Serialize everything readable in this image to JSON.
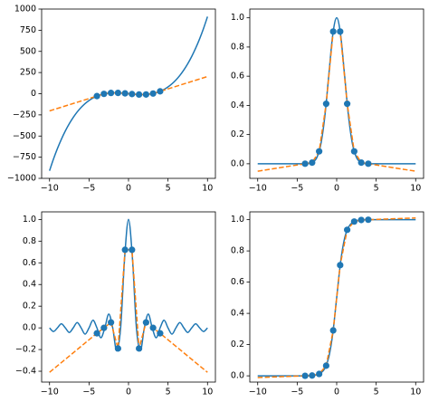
{
  "chart_data": [
    {
      "type": "line",
      "xlim": [
        -11,
        11
      ],
      "ylim": [
        -1000,
        1000
      ],
      "xticks": [
        {
          "value": -10,
          "label": "−10"
        },
        {
          "value": -5,
          "label": "−5"
        },
        0,
        5,
        10
      ],
      "yticks": [
        {
          "value": -1000,
          "label": "−1000"
        },
        {
          "value": -750,
          "label": "−750"
        },
        {
          "value": -500,
          "label": "−500"
        },
        {
          "value": -250,
          "label": "−250"
        },
        0,
        250,
        500,
        750,
        1000
      ],
      "series": [
        {
          "style": "solid",
          "color": "#1f77b4",
          "x": [
            -10,
            -9.5,
            -9,
            -8.5,
            -8,
            -7.5,
            -7,
            -6.5,
            -6,
            -5.5,
            -5,
            -4.5,
            -4,
            -3.5,
            -3,
            -2.5,
            -2,
            -1.5,
            -1,
            -0.5,
            0,
            0.5,
            1,
            1.5,
            2,
            2.5,
            3,
            3.5,
            4,
            4.5,
            5,
            5.5,
            6,
            6.5,
            7,
            7.5,
            8,
            8.5,
            9,
            9.5,
            10
          ],
          "values": [
            -910,
            -771.9,
            -648,
            -537.6,
            -440,
            -354.4,
            -280,
            -216.1,
            -162,
            -116.9,
            -80,
            -50.6,
            -28,
            -11.4,
            0,
            6.9,
            10,
            10.1,
            8,
            4.4,
            0,
            -4.4,
            -8,
            -10.1,
            -10,
            -6.9,
            0,
            11.4,
            28,
            50.6,
            80,
            116.9,
            162,
            216.1,
            280,
            354.4,
            440,
            537.6,
            648,
            771.9,
            910
          ]
        },
        {
          "style": "dashed",
          "color": "#ff7f0e",
          "x": [
            -10,
            -4,
            -3.11,
            -2.22,
            -1.33,
            -0.44,
            0.44,
            1.33,
            2.22,
            3.11,
            4,
            10
          ],
          "values": [
            -203,
            -28,
            -2.12,
            9.03,
            9.63,
            3.91,
            -3.91,
            -9.63,
            -9.03,
            2.12,
            28,
            203
          ]
        },
        {
          "style": "markers",
          "color": "#1f77b4",
          "x": [
            -4,
            -3.11,
            -2.22,
            -1.33,
            -0.44,
            0.44,
            1.33,
            2.22,
            3.11,
            4
          ],
          "values": [
            -28,
            -2.12,
            9.03,
            9.63,
            3.91,
            -3.91,
            -9.63,
            -9.03,
            2.12,
            28
          ]
        }
      ]
    },
    {
      "type": "line",
      "xlim": [
        -11,
        11
      ],
      "ylim": [
        -0.1,
        1.06
      ],
      "xticks": [
        {
          "value": -10,
          "label": "−10"
        },
        {
          "value": -5,
          "label": "−5"
        },
        0,
        5,
        10
      ],
      "yticks": [
        {
          "value": 0,
          "label": "0.0"
        },
        0.2,
        0.4,
        0.6,
        0.8,
        {
          "value": 1,
          "label": "1.0"
        }
      ],
      "series": [
        {
          "style": "solid",
          "color": "#1f77b4",
          "x": [
            -10,
            -9.5,
            -9,
            -8.5,
            -8,
            -7.5,
            -7,
            -6.5,
            -6,
            -5.5,
            -5,
            -4.5,
            -4,
            -3.5,
            -3,
            -2.5,
            -2,
            -1.5,
            -1,
            -0.5,
            0,
            0.5,
            1,
            1.5,
            2,
            2.5,
            3,
            3.5,
            4,
            4.5,
            5,
            5.5,
            6,
            6.5,
            7,
            7.5,
            8,
            8.5,
            9,
            9.5,
            10
          ],
          "values": [
            0,
            0,
            0,
            0,
            0,
            0,
            0,
            0,
            0,
            0,
            0,
            0,
            0.0003,
            0.0022,
            0.0111,
            0.0439,
            0.1353,
            0.3247,
            0.6065,
            0.8825,
            1,
            0.8825,
            0.6065,
            0.3247,
            0.1353,
            0.0439,
            0.0111,
            0.0022,
            0.0003,
            0,
            0,
            0,
            0,
            0,
            0,
            0,
            0,
            0,
            0,
            0,
            0
          ]
        },
        {
          "style": "dashed",
          "color": "#ff7f0e",
          "x": [
            -10,
            -4,
            -3.11,
            -2.22,
            -1.33,
            -0.44,
            0.44,
            1.33,
            2.22,
            3.11,
            4,
            10
          ],
          "values": [
            -0.051,
            0.0003,
            0.0079,
            0.085,
            0.411,
            0.906,
            0.906,
            0.411,
            0.085,
            0.0079,
            0.0003,
            -0.051
          ]
        },
        {
          "style": "markers",
          "color": "#1f77b4",
          "x": [
            -4,
            -3.11,
            -2.22,
            -1.33,
            -0.44,
            0.44,
            1.33,
            2.22,
            3.11,
            4
          ],
          "values": [
            0.0003,
            0.0079,
            0.085,
            0.411,
            0.906,
            0.906,
            0.411,
            0.085,
            0.0079,
            0.0003
          ]
        }
      ]
    },
    {
      "type": "line",
      "xlim": [
        -11,
        11
      ],
      "ylim": [
        -0.5,
        1.07
      ],
      "xticks": [
        {
          "value": -10,
          "label": "−10"
        },
        {
          "value": -5,
          "label": "−5"
        },
        0,
        5,
        10
      ],
      "yticks": [
        {
          "value": -0.4,
          "label": "−0.4"
        },
        {
          "value": -0.2,
          "label": "−0.2"
        },
        {
          "value": 0,
          "label": "0.0"
        },
        0.2,
        0.4,
        0.6,
        0.8,
        {
          "value": 1,
          "label": "1.0"
        }
      ],
      "series": [
        {
          "style": "solid",
          "color": "#1f77b4",
          "x": [
            -10,
            -9.5,
            -9,
            -8.5,
            -8,
            -7.5,
            -7,
            -6.5,
            -6,
            -5.5,
            -5,
            -4.5,
            -4,
            -3.5,
            -3,
            -2.5,
            -2,
            -1.5,
            -1,
            -0.5,
            0,
            0.5,
            1,
            1.5,
            2,
            2.5,
            3,
            3.5,
            4,
            4.5,
            5,
            5.5,
            6,
            6.5,
            7,
            7.5,
            8,
            8.5,
            9,
            9.5,
            10
          ],
          "values": [
            0,
            -0.0335,
            0,
            0.0374,
            0,
            -0.0424,
            0,
            0.049,
            0,
            -0.0579,
            0,
            0.0707,
            0,
            -0.0909,
            0,
            0.1273,
            0,
            -0.2122,
            0,
            0.6366,
            1,
            0.6366,
            0,
            -0.2122,
            0,
            0.1273,
            0,
            -0.0909,
            0,
            0.0707,
            0,
            -0.0579,
            0,
            0.049,
            0,
            -0.0424,
            0,
            0.0374,
            0,
            -0.0335,
            0
          ]
        },
        {
          "style": "dashed",
          "color": "#ff7f0e",
          "x": [
            -10,
            -4,
            -3.11,
            -2.22,
            -1.33,
            -0.44,
            0.44,
            1.33,
            2.22,
            3.11,
            4,
            10
          ],
          "values": [
            -0.41,
            -0.05,
            0.0,
            0.05,
            -0.19,
            0.72,
            0.72,
            -0.19,
            0.05,
            0.0,
            -0.05,
            -0.41
          ]
        },
        {
          "style": "markers",
          "color": "#1f77b4",
          "x": [
            -4,
            -3.11,
            -2.22,
            -1.33,
            -0.44,
            0.44,
            1.33,
            2.22,
            3.11,
            4
          ],
          "values": [
            -0.05,
            0.0,
            0.05,
            -0.19,
            0.72,
            0.72,
            -0.19,
            0.05,
            0.0,
            -0.05
          ]
        }
      ]
    },
    {
      "type": "line",
      "xlim": [
        -11,
        11
      ],
      "ylim": [
        -0.04,
        1.05
      ],
      "xticks": [
        {
          "value": -10,
          "label": "−10"
        },
        {
          "value": -5,
          "label": "−5"
        },
        0,
        5,
        10
      ],
      "yticks": [
        {
          "value": 0,
          "label": "0.0"
        },
        0.2,
        0.4,
        0.6,
        0.8,
        {
          "value": 1,
          "label": "1.0"
        }
      ],
      "series": [
        {
          "style": "solid",
          "color": "#1f77b4",
          "x": [
            -10,
            -9.5,
            -9,
            -8.5,
            -8,
            -7.5,
            -7,
            -6.5,
            -6,
            -5.5,
            -5,
            -4.5,
            -4,
            -3.5,
            -3,
            -2.5,
            -2,
            -1.5,
            -1,
            -0.5,
            0,
            0.5,
            1,
            1.5,
            2,
            2.5,
            3,
            3.5,
            4,
            4.5,
            5,
            5.5,
            6,
            6.5,
            7,
            7.5,
            8,
            8.5,
            9,
            9.5,
            10
          ],
          "values": [
            0,
            0,
            0,
            0,
            0,
            0,
            0,
            0,
            0,
            0,
            0,
            0.0001,
            0.0003,
            0.0009,
            0.0025,
            0.0067,
            0.018,
            0.0474,
            0.1192,
            0.2689,
            0.5,
            0.7311,
            0.8808,
            0.9526,
            0.982,
            0.9933,
            0.9975,
            0.9991,
            0.9997,
            0.9999,
            1,
            1,
            1,
            1,
            1,
            1,
            1,
            1,
            1,
            1,
            1
          ]
        },
        {
          "style": "dashed",
          "color": "#ff7f0e",
          "x": [
            -10,
            -4,
            -3.11,
            -2.22,
            -1.33,
            -0.44,
            0.44,
            1.33,
            2.22,
            3.11,
            4,
            10
          ],
          "values": [
            -0.011,
            0.0003,
            0.002,
            0.012,
            0.065,
            0.291,
            0.709,
            0.935,
            0.988,
            0.998,
            0.9997,
            1.011
          ]
        },
        {
          "style": "markers",
          "color": "#1f77b4",
          "x": [
            -4,
            -3.11,
            -2.22,
            -1.33,
            -0.44,
            0.44,
            1.33,
            2.22,
            3.11,
            4
          ],
          "values": [
            0.0003,
            0.002,
            0.012,
            0.065,
            0.291,
            0.709,
            0.935,
            0.988,
            0.998,
            0.9997
          ]
        }
      ]
    }
  ]
}
